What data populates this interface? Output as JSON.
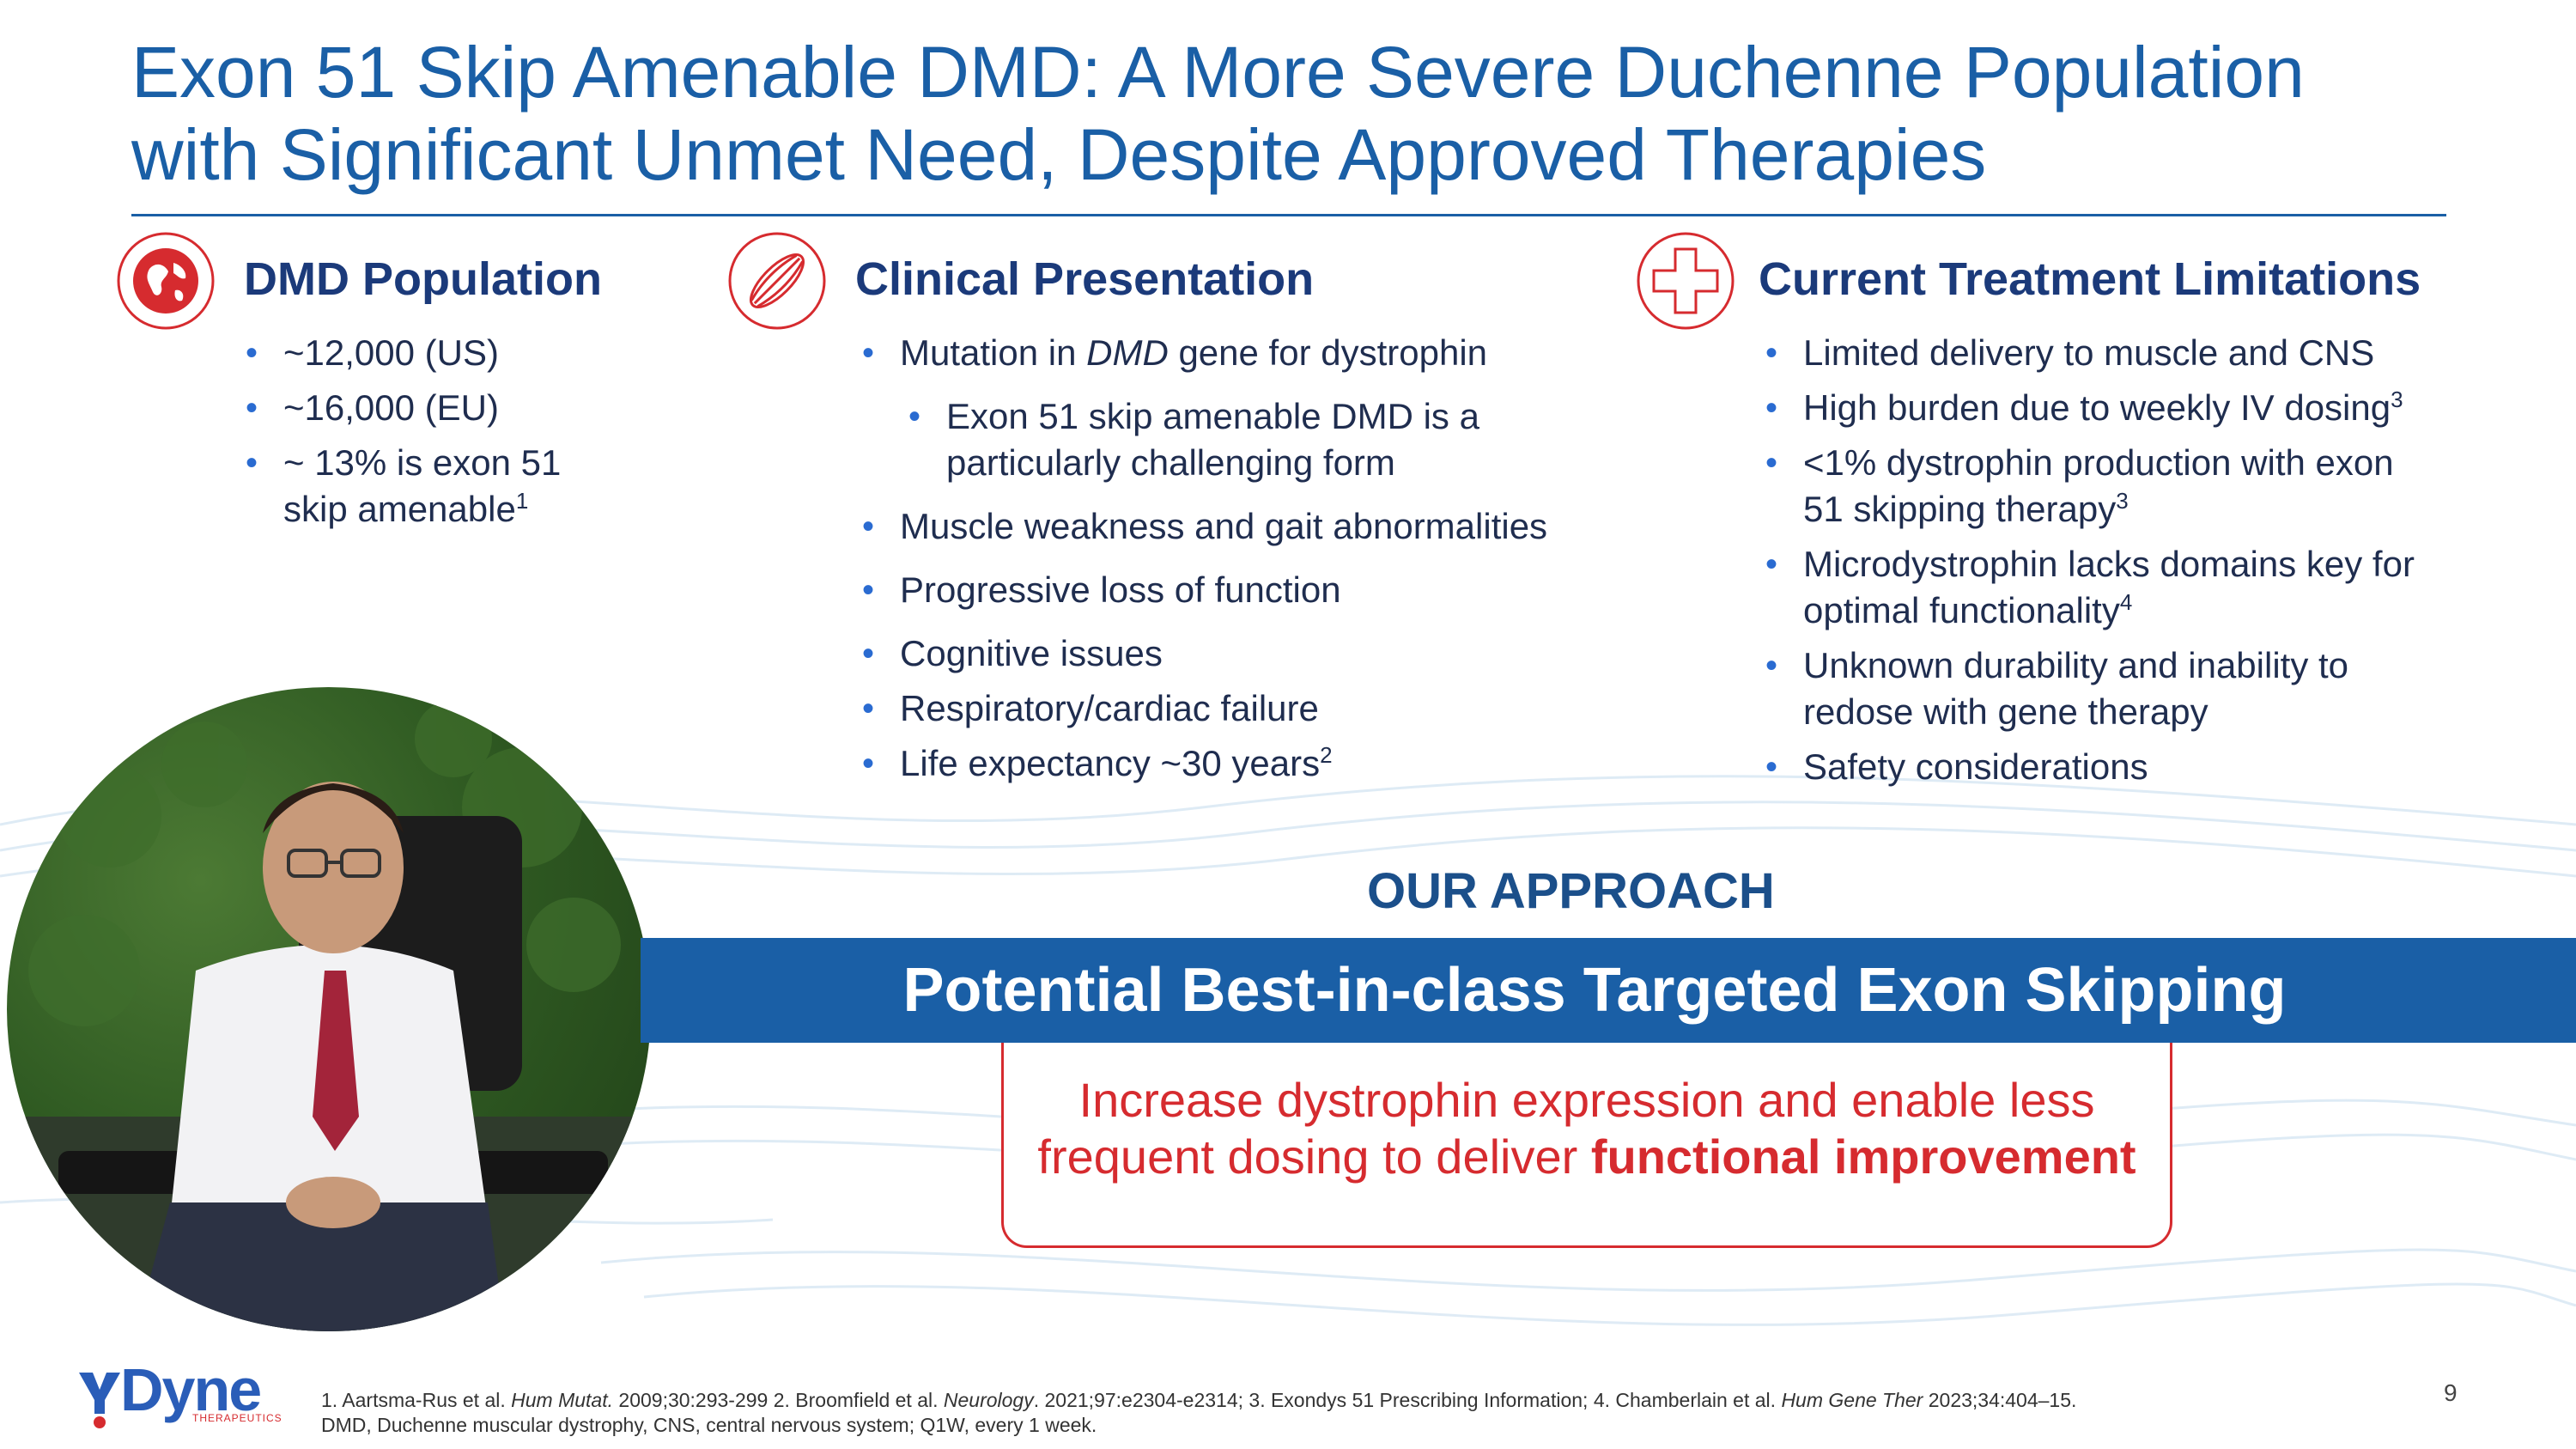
{
  "title": {
    "line1": "Exon 51 Skip Amenable DMD: A More Severe Duchenne Population",
    "line2": "with Significant Unmet Need, Despite Approved Therapies"
  },
  "colors": {
    "title_blue": "#1a5fa6",
    "heading_navy": "#1b3a7a",
    "accent_red": "#d62b2f",
    "banner_blue": "#1a5fa6"
  },
  "sections": {
    "population": {
      "icon": "globe-icon",
      "title": "DMD Population",
      "b1": "~12,000 (US)",
      "b2": "~16,000 (EU)",
      "b3a": "~ 13% is exon 51",
      "b3b": "skip amenable",
      "b3_sup": "1"
    },
    "clinical": {
      "icon": "muscle-icon",
      "title": "Clinical Presentation",
      "b1_pre": "Mutation in ",
      "b1_em": "DMD",
      "b1_post": " gene for dystrophin",
      "sub1a": "Exon 51 skip amenable DMD is a",
      "sub1b": "particularly challenging form",
      "b2": "Muscle weakness and gait abnormalities",
      "b3": "Progressive loss of function",
      "b4": "Cognitive issues",
      "b5": "Respiratory/cardiac failure",
      "b6": "Life expectancy ~30 years",
      "b6_sup": "2"
    },
    "treatment": {
      "icon": "medical-cross-icon",
      "title": "Current Treatment Limitations",
      "b1": "Limited delivery to muscle and CNS",
      "b2": "High burden due to weekly IV dosing",
      "b2_sup": "3",
      "b3a": "<1% dystrophin production with exon",
      "b3b": "51 skipping therapy",
      "b3_sup": "3",
      "b4a": "Microdystrophin lacks domains key for",
      "b4b": "optimal functionality",
      "b4_sup": "4",
      "b5a": "Unknown durability and inability to",
      "b5b": "redose with gene therapy",
      "b6": "Safety considerations"
    }
  },
  "approach": {
    "label": "OUR APPROACH",
    "banner": "Potential Best-in-class Targeted Exon Skipping",
    "goal_line1": "Increase dystrophin expression and enable less",
    "goal_line2_pre": "frequent dosing to deliver ",
    "goal_line2_bold": "functional improvement"
  },
  "footer": {
    "logo_text": "Dyne",
    "logo_sub": "THERAPEUTICS",
    "ref_1a": "1. Aartsma-Rus et al. ",
    "ref_1b": "Hum Mutat.",
    "ref_1c": " 2009;30:293-299 2. Broomfield et al. ",
    "ref_1d": "Neurology",
    "ref_1e": ". 2021;97:e2304-e2314; 3. Exondys 51 Prescribing Information; 4. Chamberlain et al. ",
    "ref_1f": "Hum Gene Ther",
    "ref_1g": " 2023;34:404–15.",
    "ref_2": "DMD, Duchenne muscular dystrophy, CNS, central nervous system; Q1W, every 1 week.",
    "page_number": "9"
  }
}
